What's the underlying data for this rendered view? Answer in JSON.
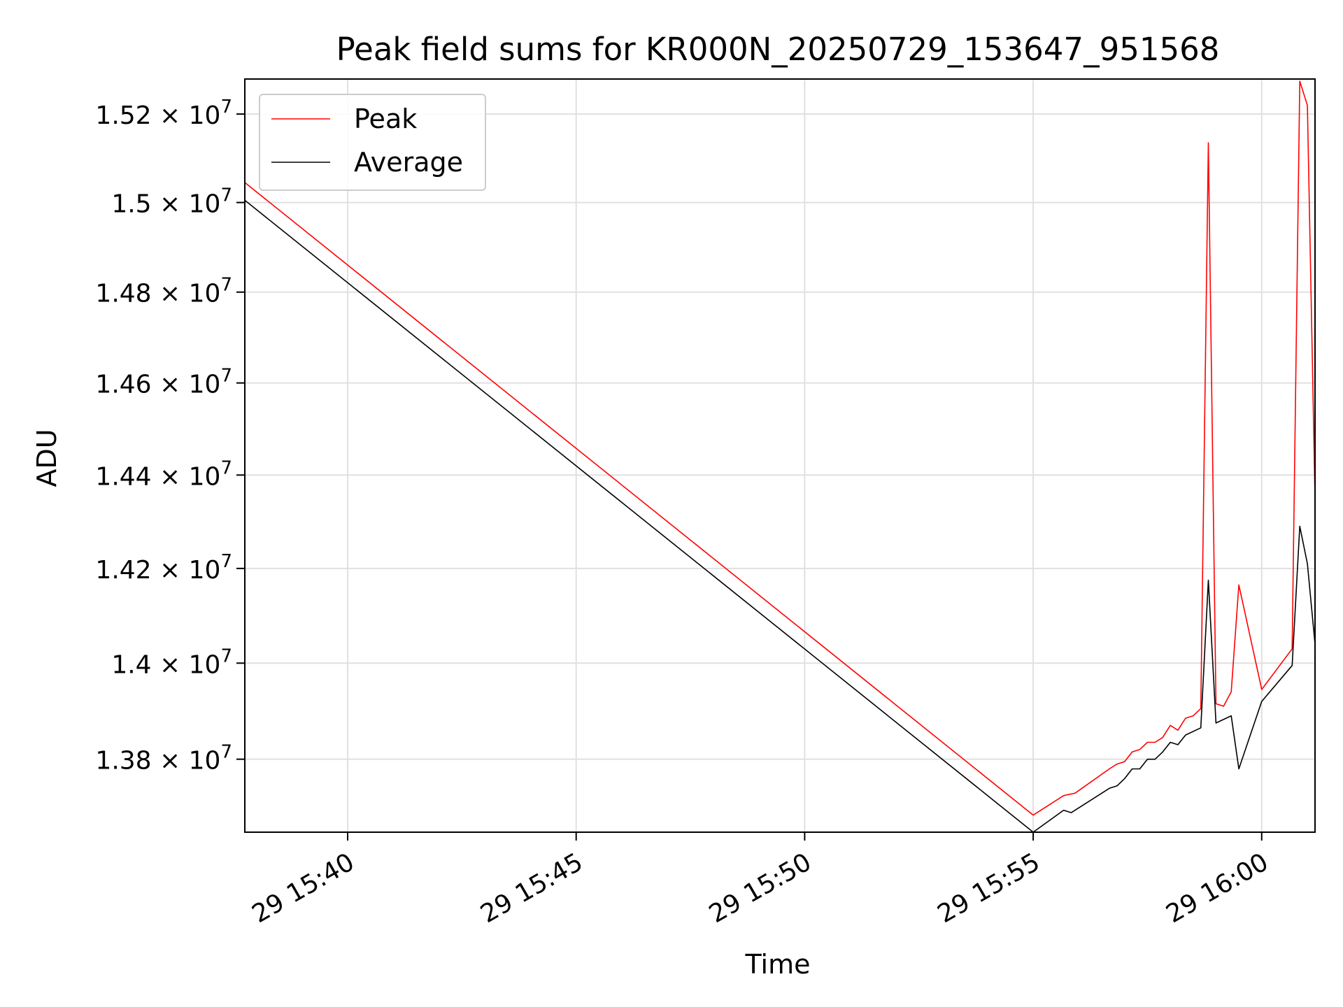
{
  "chart_data": {
    "type": "line",
    "title": "Peak field sums for KR000N_20250729_153647_951568",
    "xlabel": "Time",
    "ylabel": "ADU",
    "x_ticks": [
      {
        "time": "15:40",
        "label": "29 15:40"
      },
      {
        "time": "15:45",
        "label": "29 15:45"
      },
      {
        "time": "15:50",
        "label": "29 15:50"
      },
      {
        "time": "15:55",
        "label": "29 15:55"
      },
      {
        "time": "16:00",
        "label": "29 16:00"
      }
    ],
    "xlim": [
      "15:37:45",
      "16:01:10"
    ],
    "y_ticks": [
      {
        "value": 13800000,
        "mantissa": "1.38"
      },
      {
        "value": 14000000,
        "mantissa": "1.4"
      },
      {
        "value": 14200000,
        "mantissa": "1.42"
      },
      {
        "value": 14400000,
        "mantissa": "1.44"
      },
      {
        "value": 14600000,
        "mantissa": "1.46"
      },
      {
        "value": 14800000,
        "mantissa": "1.48"
      },
      {
        "value": 15000000,
        "mantissa": "1.5"
      },
      {
        "value": 15200000,
        "mantissa": "1.52"
      }
    ],
    "y_tick_suffix": "× 10",
    "y_tick_exponent": "7",
    "ylim": [
      13650000,
      15280000
    ],
    "yscale": "log",
    "grid": true,
    "legend_position": "top-left",
    "series": [
      {
        "name": "Peak",
        "color": "#ff0000",
        "points": [
          [
            "15:37:45",
            15045000
          ],
          [
            "15:55:00",
            13685000
          ],
          [
            "15:55:40",
            13725000
          ],
          [
            "15:55:55",
            13730000
          ],
          [
            "15:56:40",
            13780000
          ],
          [
            "15:56:50",
            13790000
          ],
          [
            "15:57:00",
            13795000
          ],
          [
            "15:57:10",
            13815000
          ],
          [
            "15:57:20",
            13820000
          ],
          [
            "15:57:30",
            13835000
          ],
          [
            "15:57:40",
            13835000
          ],
          [
            "15:57:50",
            13845000
          ],
          [
            "15:58:00",
            13870000
          ],
          [
            "15:58:10",
            13860000
          ],
          [
            "15:58:20",
            13885000
          ],
          [
            "15:58:30",
            13890000
          ],
          [
            "15:58:40",
            13905000
          ],
          [
            "15:58:50",
            15135000
          ],
          [
            "15:59:00",
            13915000
          ],
          [
            "15:59:10",
            13910000
          ],
          [
            "15:59:20",
            13940000
          ],
          [
            "15:59:30",
            14165000
          ],
          [
            "16:00:00",
            13945000
          ],
          [
            "16:00:40",
            14030000
          ],
          [
            "16:00:50",
            15275000
          ],
          [
            "16:01:00",
            15220000
          ],
          [
            "16:01:10",
            14350000
          ]
        ]
      },
      {
        "name": "Average",
        "color": "#000000",
        "points": [
          [
            "15:37:45",
            15005000
          ],
          [
            "15:55:00",
            13650000
          ],
          [
            "15:55:40",
            13695000
          ],
          [
            "15:55:50",
            13690000
          ],
          [
            "15:56:40",
            13740000
          ],
          [
            "15:56:50",
            13745000
          ],
          [
            "15:57:00",
            13760000
          ],
          [
            "15:57:10",
            13780000
          ],
          [
            "15:57:20",
            13780000
          ],
          [
            "15:57:30",
            13800000
          ],
          [
            "15:57:40",
            13800000
          ],
          [
            "15:57:50",
            13815000
          ],
          [
            "15:58:00",
            13835000
          ],
          [
            "15:58:10",
            13830000
          ],
          [
            "15:58:20",
            13850000
          ],
          [
            "15:58:40",
            13865000
          ],
          [
            "15:58:50",
            14175000
          ],
          [
            "15:59:00",
            13875000
          ],
          [
            "15:59:20",
            13890000
          ],
          [
            "15:59:30",
            13780000
          ],
          [
            "16:00:00",
            13920000
          ],
          [
            "16:00:40",
            13995000
          ],
          [
            "16:00:50",
            14290000
          ],
          [
            "16:01:00",
            14210000
          ],
          [
            "16:01:10",
            14040000
          ]
        ]
      }
    ]
  }
}
